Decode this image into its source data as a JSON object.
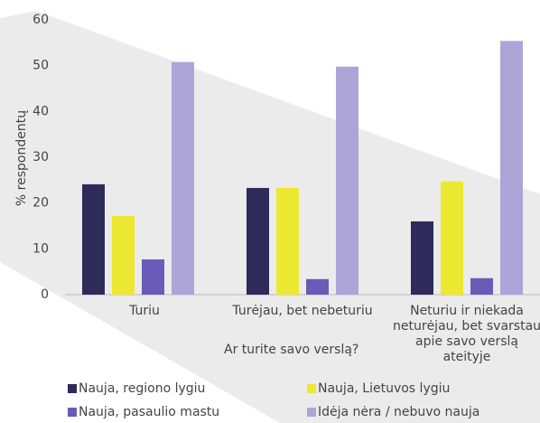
{
  "chart_data": {
    "type": "bar",
    "x_label": "Ar turite savo verslą?",
    "y_label": "% respondentų",
    "categories": [
      "Turiu",
      "Turėjau, bet nebeturiu",
      "Neturiu ir niekada neturėjau, bet svarstau apie savo verslą ateityje"
    ],
    "series": [
      {
        "name": "Nauja, regiono lygiu",
        "color": "#2e2a5a",
        "values": [
          24.1,
          23.3,
          16.0
        ]
      },
      {
        "name": "Nauja, Lietuvos lygiu",
        "color": "#ece832",
        "values": [
          17.2,
          23.3,
          24.7
        ]
      },
      {
        "name": "Nauja, pasaulio mastu",
        "color": "#6a5bb8",
        "values": [
          7.7,
          3.4,
          3.6
        ]
      },
      {
        "name": "Idėja nėra / nebuvo nauja",
        "color": "#ada5d8",
        "values": [
          50.8,
          49.8,
          55.4
        ]
      }
    ],
    "ylim": [
      0,
      60
    ],
    "yticks": [
      0,
      10,
      20,
      30,
      40,
      50,
      60
    ],
    "grid": false
  }
}
